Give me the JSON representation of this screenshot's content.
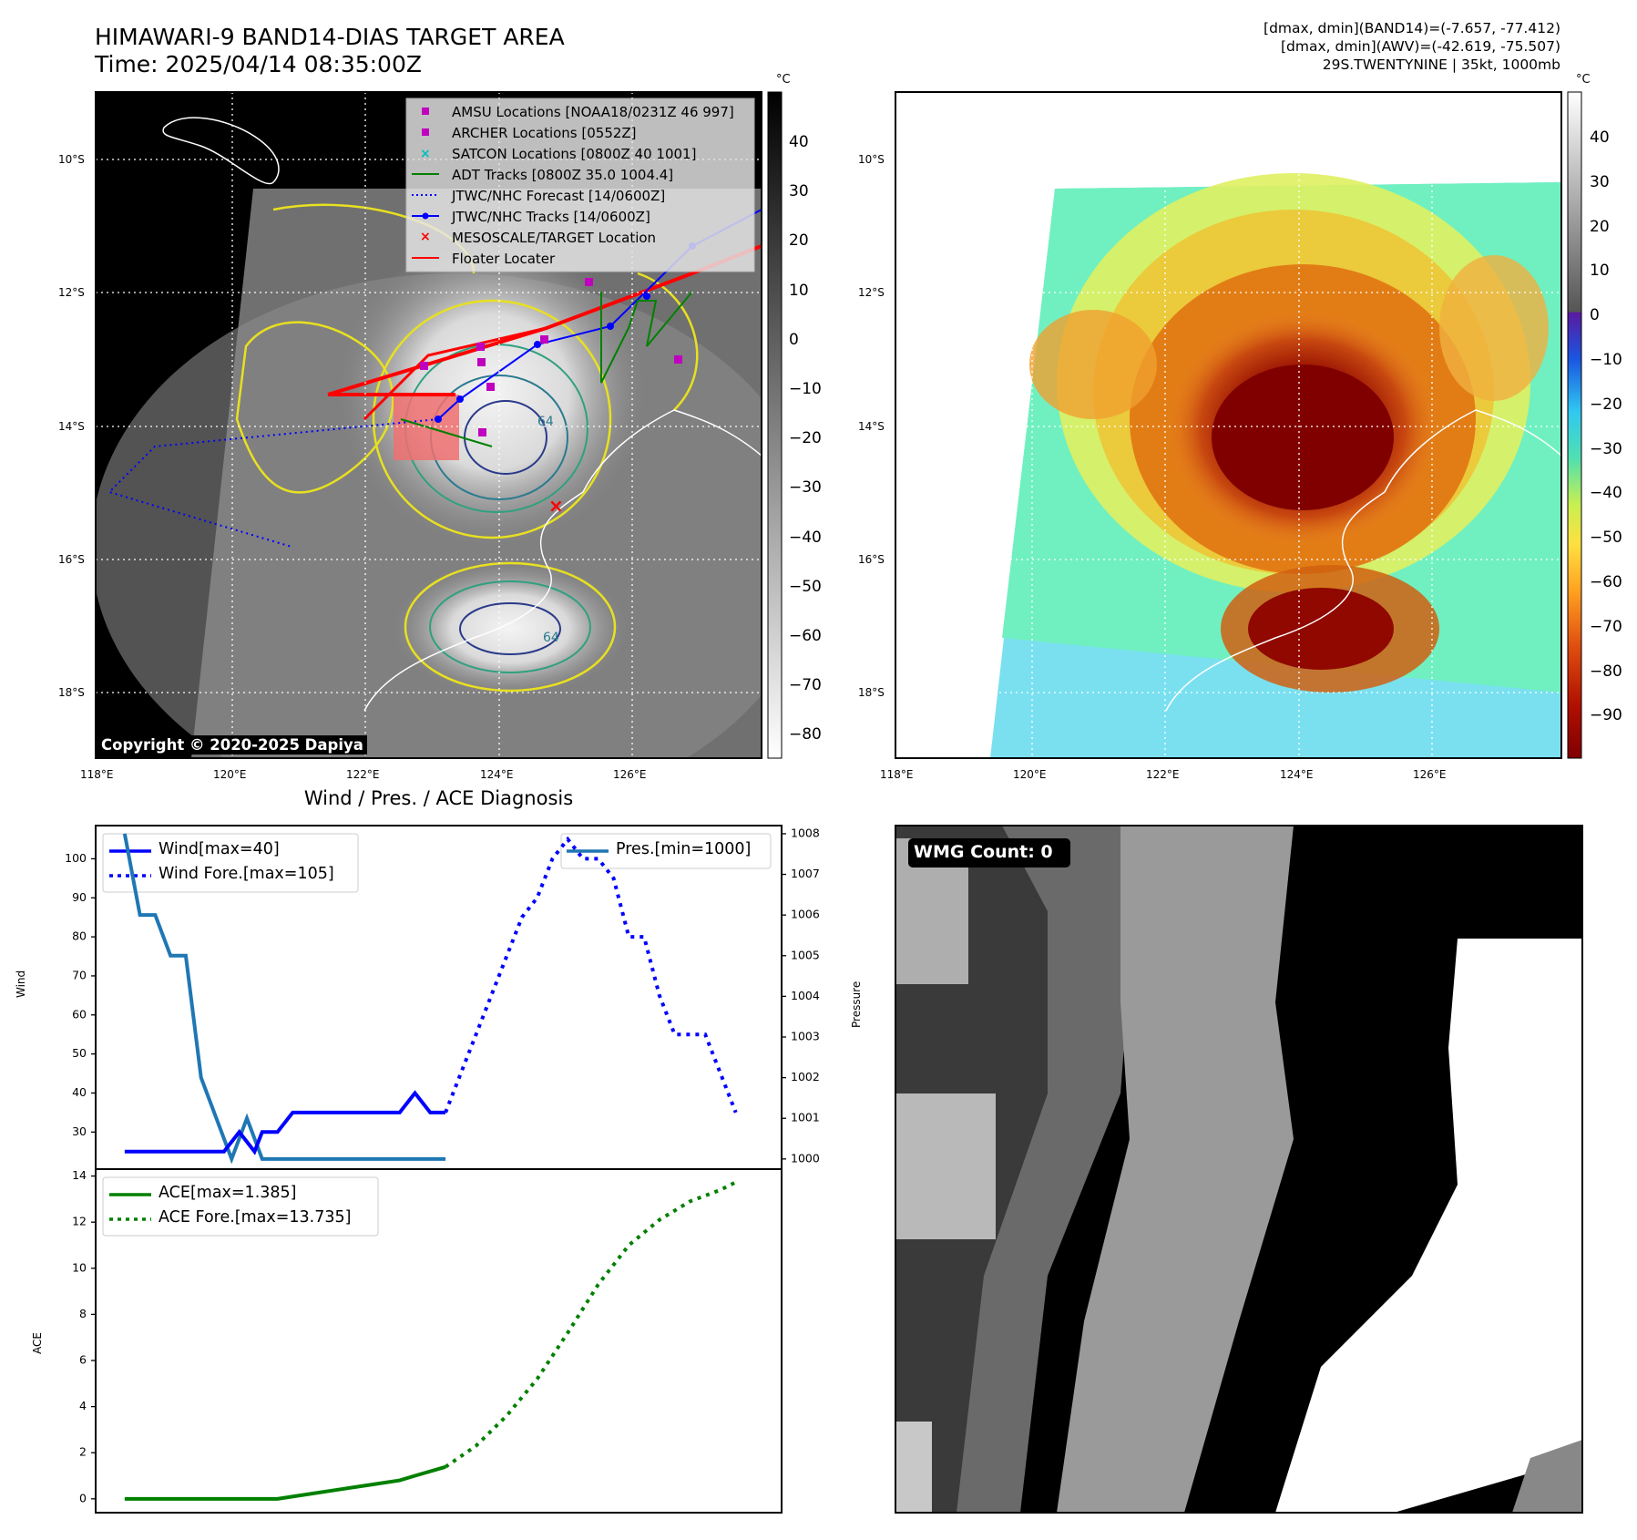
{
  "header": {
    "title_line1": "HIMAWARI-9 BAND14-DIAS TARGET AREA",
    "title_line2": "Time: 2025/04/14 08:35:00Z",
    "info_line1": "[dmax, dmin](BAND14)=(-7.657, -77.412)",
    "info_line2": "[dmax, dmin](AWV)=(-42.619, -75.507)",
    "info_line3": "29S.TWENTYNINE | 35kt, 1000mb"
  },
  "ir_map": {
    "lat_labels": [
      "10°S",
      "12°S",
      "14°S",
      "16°S",
      "18°S"
    ],
    "lon_labels": [
      "118°E",
      "120°E",
      "122°E",
      "124°E",
      "126°E"
    ],
    "contour_labels": [
      "64",
      "64"
    ],
    "copyright": "Copyright © 2020-2025 Dapiya",
    "colorbar": {
      "unit": "°C",
      "ticks": [
        "40",
        "30",
        "20",
        "10",
        "0",
        "−10",
        "−20",
        "−30",
        "−40",
        "−50",
        "−60",
        "−70",
        "−80"
      ]
    },
    "legend": [
      {
        "label": "AMSU Locations [NOAA18/0231Z 46 997]",
        "marker": "square",
        "color": "#bf00bf"
      },
      {
        "label": "ARCHER Locations [0552Z]",
        "marker": "square",
        "color": "#bf00bf"
      },
      {
        "label": "SATCON Locations [0800Z 40 1001]",
        "marker": "x",
        "color": "#00bfbf"
      },
      {
        "label": "ADT Tracks [0800Z 35.0 1004.4]",
        "marker": "line",
        "color": "#008000"
      },
      {
        "label": "JTWC/NHC Forecast [14/0600Z]",
        "marker": "dotted",
        "color": "#0000ff"
      },
      {
        "label": "JTWC/NHC Tracks [14/0600Z]",
        "marker": "line-dot",
        "color": "#0000ff"
      },
      {
        "label": "MESOSCALE/TARGET Location",
        "marker": "x",
        "color": "#ff0000"
      },
      {
        "label": "Floater Locater",
        "marker": "line",
        "color": "#ff0000"
      }
    ]
  },
  "wv_map": {
    "lat_labels": [
      "10°S",
      "12°S",
      "14°S",
      "16°S",
      "18°S"
    ],
    "lon_labels": [
      "118°E",
      "120°E",
      "122°E",
      "124°E",
      "126°E"
    ],
    "colorbar": {
      "unit": "°C",
      "ticks": [
        "40",
        "30",
        "20",
        "10",
        "0",
        "−10",
        "−20",
        "−30",
        "−40",
        "−50",
        "−60",
        "−70",
        "−80",
        "−90"
      ]
    }
  },
  "chart_data": [
    {
      "type": "line",
      "title": "Wind / Pres. / ACE Diagnosis",
      "ylabel": "Wind",
      "ylabel_right": "Pressure",
      "ylim": [
        20.5,
        108.5
      ],
      "yticks": [
        30,
        40,
        50,
        60,
        70,
        80,
        90,
        100
      ],
      "y2lim": [
        999.75,
        1008.2
      ],
      "y2ticks": [
        1000,
        1001,
        1002,
        1003,
        1004,
        1005,
        1006,
        1007,
        1008
      ],
      "series": [
        {
          "name": "Wind[max=40]",
          "color": "#0000ff",
          "style": "solid",
          "axis": "left",
          "x": [
            0,
            6,
            6.5,
            7,
            7.5,
            8,
            8.5,
            9,
            10,
            11,
            12,
            13,
            14,
            15,
            16,
            17,
            18,
            19,
            20,
            21
          ],
          "values": [
            25,
            25,
            25,
            27.5,
            30,
            27.5,
            25,
            30,
            30,
            35,
            35,
            35,
            35,
            35,
            35,
            35,
            35,
            40,
            35,
            35
          ]
        },
        {
          "name": "Wind Fore.[max=105]",
          "color": "#0000ff",
          "style": "dotted",
          "axis": "left",
          "x": [
            21,
            22,
            23,
            24,
            25,
            26,
            27,
            28,
            29,
            30,
            31,
            32,
            33,
            34,
            35,
            36,
            37,
            38,
            39,
            40
          ],
          "values": [
            35,
            45,
            55,
            65,
            75,
            85,
            90,
            100,
            105,
            100,
            100,
            95,
            80,
            80,
            65,
            55,
            55,
            55,
            45,
            35
          ]
        },
        {
          "name": "Pres.[min=1000]",
          "color": "#1f77b4",
          "style": "solid",
          "axis": "right",
          "x": [
            0,
            1,
            2,
            3,
            4,
            5,
            6,
            7,
            8,
            9,
            10,
            11,
            12,
            13,
            14,
            15,
            16,
            17,
            18,
            19,
            20,
            21
          ],
          "values": [
            1008,
            1006,
            1006,
            1005,
            1005,
            1002,
            1001,
            1000,
            1001,
            1000,
            1000,
            1000,
            1000,
            1000,
            1000,
            1000,
            1000,
            1000,
            1000,
            1000,
            1000,
            1000
          ]
        }
      ]
    },
    {
      "type": "line",
      "ylabel": "ACE",
      "ylim": [
        -0.6,
        14.3
      ],
      "yticks": [
        0,
        2,
        4,
        6,
        8,
        10,
        12,
        14
      ],
      "series": [
        {
          "name": "ACE[max=1.385]",
          "color": "#008000",
          "style": "solid",
          "x": [
            0,
            2,
            4,
            6,
            8,
            10,
            12,
            14,
            16,
            18,
            19,
            21
          ],
          "values": [
            0,
            0,
            0,
            0,
            0,
            0,
            0.2,
            0.4,
            0.6,
            0.8,
            1.0,
            1.385
          ]
        },
        {
          "name": "ACE Fore.[max=13.735]",
          "color": "#008000",
          "style": "dotted",
          "x": [
            21,
            23,
            25,
            27,
            29,
            31,
            33,
            35,
            37,
            39,
            40
          ],
          "values": [
            1.385,
            2.3,
            3.6,
            5.2,
            7.2,
            9.3,
            11.0,
            12.1,
            12.9,
            13.4,
            13.735
          ]
        }
      ]
    }
  ],
  "wmg_panel": {
    "label": "WMG Count: 0"
  }
}
